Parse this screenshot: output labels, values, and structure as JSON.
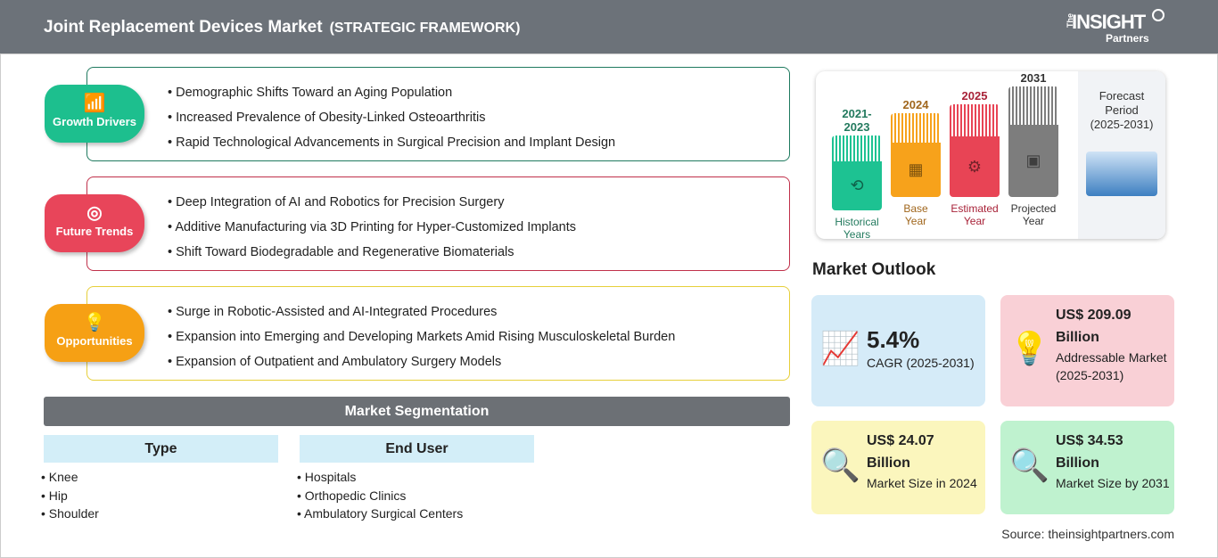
{
  "header": {
    "title": "Joint Replacement Devices Market",
    "subtitle": "(STRATEGIC FRAMEWORK)",
    "logo": {
      "the": "The",
      "insight": "INSIGHT",
      "partners": "Partners"
    }
  },
  "sections": [
    {
      "label": "Growth Drivers",
      "icon": "chart-growth-icon",
      "color": "#1dbf8e",
      "border": "#1f7a5f",
      "items": [
        "Demographic Shifts Toward an Aging Population",
        "Increased Prevalence of Obesity-Linked Osteoarthritis",
        "Rapid Technological Advancements in Surgical Precision and Implant Design"
      ]
    },
    {
      "label": "Future Trends",
      "icon": "target-icon",
      "color": "#e8455a",
      "border": "#c0304a",
      "items": [
        "Deep Integration of AI and Robotics for Precision Surgery",
        "Additive Manufacturing via 3D Printing for Hyper-Customized Implants",
        "Shift Toward Biodegradable and Regenerative Biomaterials"
      ]
    },
    {
      "label": "Opportunities",
      "icon": "lightbulb-hand-icon",
      "color": "#f6a014",
      "border": "#e6cf3a",
      "items": [
        "Surge in Robotic-Assisted and AI-Integrated Procedures",
        "Expansion into Emerging and Developing Markets Amid Rising Musculoskeletal Burden",
        "Expansion of Outpatient and Ambulatory Surgery Models"
      ]
    }
  ],
  "segmentation": {
    "title": "Market Segmentation",
    "groups": [
      {
        "title": "Type",
        "items": [
          "Knee",
          "Hip",
          "Shoulder"
        ]
      },
      {
        "title": "End User",
        "items": [
          "Hospitals",
          "Orthopedic Clinics",
          "Ambulatory Surgical Centers"
        ]
      }
    ]
  },
  "timeline": {
    "columns": [
      {
        "year": "2021-2023",
        "label1": "Historical",
        "label2": "Years",
        "color": "#1dc292",
        "text": "#237a5e",
        "icon": "history-icon"
      },
      {
        "year": "2024",
        "label1": "Base",
        "label2": "Year",
        "color": "#f7a21b",
        "text": "#a0661c",
        "icon": "calendar-icon"
      },
      {
        "year": "2025",
        "label1": "Estimated",
        "label2": "Year",
        "color": "#e84455",
        "text": "#a82238",
        "icon": "monitor-gear-icon"
      },
      {
        "year": "2031",
        "label1": "Projected",
        "label2": "Year",
        "color": "#7d7d7d",
        "text": "#333333",
        "icon": "presentation-icon"
      }
    ],
    "forecast": {
      "line1": "Forecast",
      "line2": "Period",
      "line3": "(2025-2031)"
    }
  },
  "outlook": {
    "title": "Market Outlook",
    "cards": [
      {
        "value": "5.4%",
        "desc": "CAGR (2025-2031)",
        "bg": "#d5ebf8",
        "icon": "growth-chart-icon"
      },
      {
        "value": "US$ 209.09 Billion",
        "desc": "Addressable Market (2025-2031)",
        "bg": "#f9d0d6",
        "icon": "dollar-bulb-icon"
      },
      {
        "value": "US$ 24.07 Billion",
        "desc": "Market Size in 2024",
        "bg": "#fbf6bd",
        "icon": "market-search-icon"
      },
      {
        "value": "US$ 34.53 Billion",
        "desc": "Market Size by 2031",
        "bg": "#bff2cf",
        "icon": "market-search-icon"
      }
    ]
  },
  "source": "Source: theinsightpartners.com"
}
